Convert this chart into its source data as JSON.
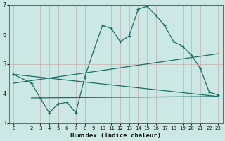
{
  "xlabel": "Humidex (Indice chaleur)",
  "bg_color": "#cce8e5",
  "line_color": "#1a6e64",
  "grid_color": "#aacfcc",
  "x_ticks": [
    0,
    2,
    3,
    4,
    5,
    6,
    7,
    8,
    9,
    10,
    11,
    12,
    13,
    14,
    15,
    16,
    17,
    18,
    19,
    20,
    21,
    22,
    23
  ],
  "xlim": [
    -0.5,
    23.5
  ],
  "ylim": [
    3,
    7
  ],
  "yticks": [
    3,
    4,
    5,
    6,
    7
  ],
  "line1_x": [
    0,
    2,
    3,
    4,
    5,
    6,
    7,
    8,
    9,
    10,
    11,
    12,
    13,
    14,
    15,
    16,
    17,
    18,
    19,
    20,
    21,
    22,
    23
  ],
  "line1_y": [
    4.65,
    4.35,
    3.85,
    3.35,
    3.65,
    3.7,
    3.35,
    4.55,
    5.45,
    6.3,
    6.2,
    5.75,
    5.95,
    6.85,
    6.95,
    6.65,
    6.3,
    5.75,
    5.6,
    5.3,
    4.85,
    4.05,
    3.95
  ],
  "line2_x": [
    0,
    23
  ],
  "line2_y": [
    4.65,
    3.9
  ],
  "line3_x": [
    0,
    23
  ],
  "line3_y": [
    4.35,
    5.35
  ],
  "line4_x": [
    2,
    23
  ],
  "line4_y": [
    3.85,
    3.9
  ]
}
